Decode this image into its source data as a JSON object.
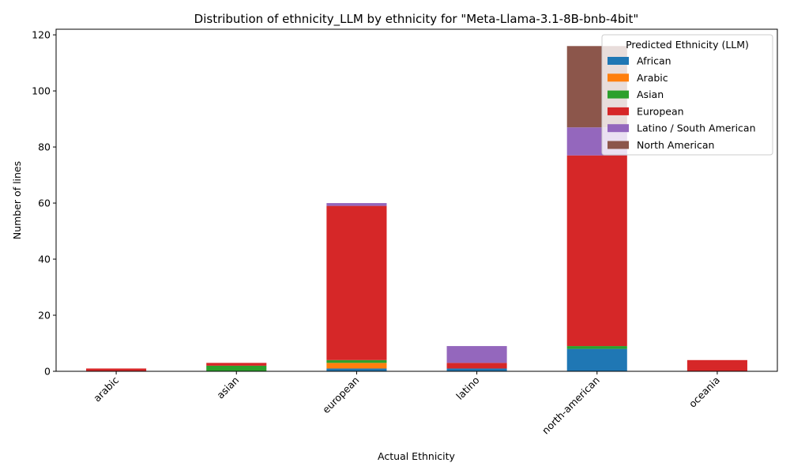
{
  "chart_data": {
    "type": "bar",
    "stacked": true,
    "title": "Distribution of ethnicity_LLM by ethnicity for \"Meta-Llama-3.1-8B-bnb-4bit\"",
    "xlabel": "Actual Ethnicity",
    "ylabel": "Number of lines",
    "ylim": [
      0,
      122
    ],
    "yticks": [
      0,
      20,
      40,
      60,
      80,
      100,
      120
    ],
    "categories": [
      "arabic",
      "asian",
      "european",
      "latino",
      "north-american",
      "oceania"
    ],
    "legend_title": "Predicted Ethnicity (LLM)",
    "legend_position": "top-right",
    "grid": false,
    "series": [
      {
        "name": "African",
        "color": "#1f77b4",
        "values": [
          0,
          0,
          1,
          1,
          8,
          0
        ]
      },
      {
        "name": "Arabic",
        "color": "#ff7f0e",
        "values": [
          0,
          0,
          2,
          0,
          0,
          0
        ]
      },
      {
        "name": "Asian",
        "color": "#2ca02c",
        "values": [
          0,
          2,
          1,
          0,
          1,
          0
        ]
      },
      {
        "name": "European",
        "color": "#d62728",
        "values": [
          1,
          1,
          55,
          2,
          68,
          4
        ]
      },
      {
        "name": "Latino / South American",
        "color": "#9467bd",
        "values": [
          0,
          0,
          1,
          6,
          10,
          0
        ]
      },
      {
        "name": "North American",
        "color": "#8c564b",
        "values": [
          0,
          0,
          0,
          0,
          29,
          0
        ]
      }
    ]
  }
}
